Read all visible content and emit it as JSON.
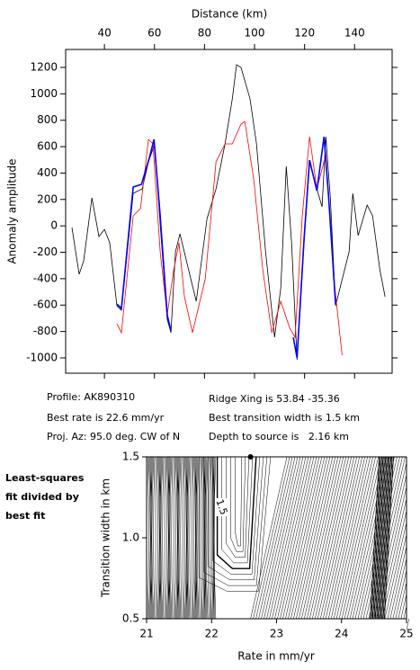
{
  "chart_data": [
    {
      "type": "line",
      "xlabel": "Distance (km)",
      "ylabel": "Anomaly amplitude",
      "xlim": [
        24.5,
        155
      ],
      "ylim": [
        -1116,
        1336
      ],
      "xticks": [
        40,
        60,
        80,
        100,
        120,
        140
      ],
      "yticks": [
        -1000,
        -800,
        -600,
        -400,
        -200,
        0,
        200,
        400,
        600,
        800,
        1000,
        1200
      ],
      "series": [
        {
          "color": "#000000",
          "x": [
            27,
            29.9,
            31.7,
            35,
            37.8,
            40,
            42.1,
            45,
            46.8,
            51.5,
            55.1,
            57.6,
            60.1,
            62.3,
            65.1,
            66.6,
            68.4,
            70.2,
            74.5,
            76.7,
            81,
            84.6,
            88.2,
            91.1,
            92.8,
            94.6,
            98.2,
            100.8,
            104.4,
            108,
            110.5,
            112.7,
            114.8,
            117,
            119.8,
            122,
            124.9,
            127,
            128.5,
            130.3,
            132.4,
            134.2,
            137.8,
            139.3,
            141.4,
            145,
            147.2,
            150.1,
            152.2
          ],
          "values": [
            -13,
            -367,
            -265,
            212,
            -81,
            -26,
            -128,
            -605,
            -639,
            246,
            280,
            485,
            621,
            12,
            -707,
            -809,
            -196,
            -60,
            -401,
            -571,
            55,
            280,
            621,
            962,
            1220,
            1200,
            962,
            621,
            -196,
            -844,
            -469,
            451,
            -128,
            -1014,
            -128,
            485,
            280,
            144,
            675,
            212,
            -605,
            -469,
            -196,
            246,
            -74,
            157,
            76,
            -333,
            -537
          ]
        },
        {
          "color": "#ff0000",
          "x": [
            45,
            46.8,
            51.5,
            54.4,
            57.6,
            59.4,
            62.3,
            65.1,
            67.7,
            69.8,
            72,
            75.2,
            80.3,
            84.6,
            88.2,
            91.1,
            94.6,
            96.1,
            99.7,
            103.3,
            106.9,
            110.5,
            114.1,
            116.2,
            119.1,
            122,
            124.9,
            128.5,
            132.1,
            135
          ],
          "values": [
            -741,
            -809,
            76,
            131,
            655,
            621,
            -196,
            -673,
            -333,
            -128,
            -537,
            -809,
            -401,
            485,
            621,
            621,
            771,
            791,
            349,
            -333,
            -809,
            -571,
            -775,
            -844,
            76,
            675,
            280,
            539,
            -469,
            -980
          ]
        },
        {
          "color": "#0000ff",
          "x": [
            45,
            46.8,
            51.5,
            54.8,
            58,
            59.8,
            62.3,
            65.1,
            66.6,
            null,
            115.5,
            117,
            119.8,
            122,
            124.9,
            127.8,
            129.6,
            132.4
          ],
          "values": [
            -592,
            -626,
            294,
            314,
            518,
            655,
            76,
            -673,
            -796,
            null,
            -844,
            -1000,
            -98,
            498,
            266,
            675,
            226,
            -592
          ]
        }
      ]
    },
    {
      "type": "contour",
      "xlabel": "Rate in mm/yr",
      "ylabel": "Transition width in km",
      "xlim": [
        21,
        25
      ],
      "ylim": [
        0.5,
        1.5
      ],
      "xticks": [
        21,
        22,
        23,
        24,
        25
      ],
      "yticks": [
        0.5,
        {
          "value": 1,
          "label": "1.0"
        },
        1.5
      ],
      "best_fit": {
        "x": 22.6,
        "y": 1.5
      },
      "contour_label": 1.5
    }
  ],
  "profile_info": [
    "Profile: AK890310",
    "Best rate is 22.6 mm/yr",
    "Proj. Az: 95.0 deg. CW of N",
    "Ridge Xing is 53.84 -35.36",
    "Best transition width is 1.5 km",
    "Depth to source is   2.16 km"
  ],
  "side_label": [
    "Least-squares",
    "fit divided by",
    "best fit"
  ]
}
